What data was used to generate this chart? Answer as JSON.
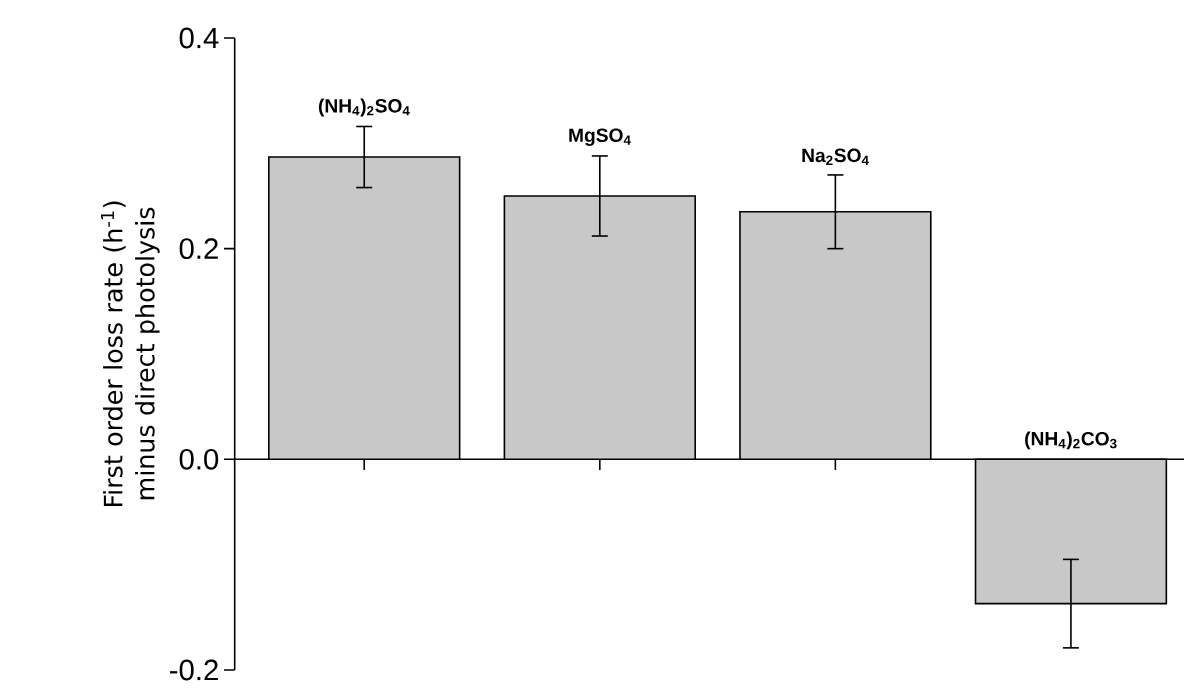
{
  "chart_data": {
    "type": "bar",
    "ylabel": "First order loss rate (h$^{-1}$) minus direct photolysis",
    "categories": [
      "(NH$_{4}$)$_{2}$SO$_{4}$",
      "MgSO$_{4}$",
      "Na$_{2}$SO$_{4}$",
      "(NH$_{4}$)$_{2}$CO$_{3}$"
    ],
    "values": [
      0.287,
      0.25,
      0.235,
      -0.137
    ],
    "errors": [
      0.029,
      0.038,
      0.035,
      0.042
    ],
    "color": "#c8c8c8",
    "ylim": [
      -0.2,
      0.4
    ],
    "yticks": [
      {
        "value": -0.2,
        "label": "-0.2"
      },
      {
        "value": 0,
        "label": "0.0"
      },
      {
        "value": 0.2,
        "label": "0.2"
      },
      {
        "value": 0.4,
        "label": "0.4"
      }
    ]
  }
}
